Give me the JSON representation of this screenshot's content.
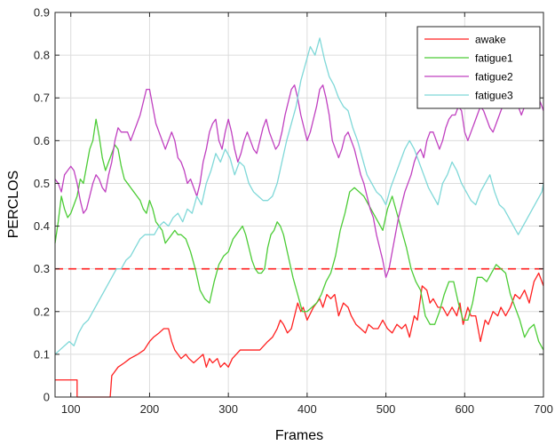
{
  "chart_data": {
    "type": "line",
    "xlabel": "Frames",
    "ylabel": "PERCLOS",
    "xlim": [
      80,
      700
    ],
    "ylim": [
      0,
      0.9
    ],
    "x_ticks": [
      100,
      200,
      300,
      400,
      500,
      600,
      700
    ],
    "y_ticks": [
      0,
      0.1,
      0.2,
      0.3,
      0.4,
      0.5,
      0.6,
      0.7,
      0.8,
      0.9
    ],
    "x_tick_labels": [
      "100",
      "200",
      "300",
      "400",
      "500",
      "600",
      "700"
    ],
    "y_tick_labels": [
      "0",
      "0.1",
      "0.2",
      "0.3",
      "0.4",
      "0.5",
      "0.6",
      "0.7",
      "0.8",
      "0.9"
    ],
    "grid": true,
    "legend_position": "top-right",
    "threshold": {
      "y": 0.3,
      "color": "#ff2020",
      "style": "dashed"
    },
    "series": [
      {
        "name": "awake",
        "color": "#ff2020",
        "x": [
          80,
          108,
          108,
          150,
          152,
          160,
          168,
          175,
          185,
          193,
          200,
          205,
          212,
          218,
          224,
          228,
          232,
          236,
          240,
          246,
          250,
          256,
          262,
          268,
          272,
          276,
          280,
          286,
          290,
          295,
          300,
          305,
          310,
          315,
          320,
          330,
          340,
          350,
          356,
          362,
          366,
          370,
          375,
          380,
          388,
          392,
          395,
          400,
          408,
          416,
          420,
          425,
          430,
          435,
          440,
          446,
          452,
          456,
          462,
          468,
          474,
          478,
          484,
          490,
          496,
          502,
          508,
          514,
          520,
          525,
          530,
          536,
          540,
          546,
          552,
          556,
          560,
          566,
          572,
          578,
          584,
          590,
          594,
          598,
          604,
          608,
          614,
          620,
          626,
          630,
          636,
          642,
          646,
          652,
          658,
          664,
          670,
          676,
          682,
          688,
          694,
          700
        ],
        "y": [
          0.04,
          0.04,
          0.0,
          0.0,
          0.05,
          0.07,
          0.08,
          0.09,
          0.1,
          0.11,
          0.13,
          0.14,
          0.15,
          0.16,
          0.16,
          0.13,
          0.11,
          0.1,
          0.09,
          0.1,
          0.09,
          0.08,
          0.09,
          0.1,
          0.07,
          0.09,
          0.08,
          0.09,
          0.07,
          0.08,
          0.07,
          0.09,
          0.1,
          0.11,
          0.11,
          0.11,
          0.11,
          0.13,
          0.14,
          0.16,
          0.18,
          0.17,
          0.15,
          0.16,
          0.22,
          0.2,
          0.21,
          0.18,
          0.21,
          0.23,
          0.21,
          0.24,
          0.23,
          0.24,
          0.19,
          0.22,
          0.21,
          0.19,
          0.17,
          0.16,
          0.15,
          0.17,
          0.16,
          0.16,
          0.18,
          0.16,
          0.15,
          0.17,
          0.16,
          0.17,
          0.14,
          0.19,
          0.18,
          0.26,
          0.25,
          0.22,
          0.23,
          0.21,
          0.21,
          0.19,
          0.21,
          0.19,
          0.22,
          0.17,
          0.21,
          0.19,
          0.19,
          0.13,
          0.18,
          0.17,
          0.2,
          0.19,
          0.21,
          0.19,
          0.21,
          0.24,
          0.23,
          0.25,
          0.22,
          0.27,
          0.29,
          0.26
        ]
      },
      {
        "name": "fatigue1",
        "color": "#4ccc36",
        "x": [
          80,
          84,
          88,
          92,
          96,
          100,
          104,
          108,
          112,
          116,
          120,
          124,
          128,
          132,
          136,
          140,
          144,
          148,
          152,
          156,
          160,
          164,
          168,
          172,
          176,
          180,
          184,
          188,
          192,
          196,
          200,
          204,
          208,
          212,
          216,
          220,
          224,
          228,
          232,
          236,
          240,
          246,
          252,
          258,
          264,
          270,
          276,
          282,
          288,
          294,
          300,
          306,
          310,
          314,
          318,
          322,
          326,
          330,
          334,
          338,
          342,
          346,
          350,
          354,
          358,
          362,
          366,
          370,
          376,
          382,
          388,
          394,
          400,
          406,
          412,
          418,
          424,
          430,
          436,
          442,
          448,
          454,
          460,
          466,
          472,
          478,
          484,
          490,
          496,
          502,
          508,
          514,
          520,
          526,
          532,
          538,
          544,
          550,
          556,
          562,
          568,
          574,
          580,
          586,
          592,
          598,
          604,
          610,
          616,
          622,
          628,
          634,
          640,
          646,
          652,
          658,
          664,
          670,
          676,
          682,
          688,
          694,
          700
        ],
        "y": [
          0.36,
          0.41,
          0.47,
          0.44,
          0.42,
          0.43,
          0.45,
          0.47,
          0.51,
          0.5,
          0.54,
          0.58,
          0.6,
          0.65,
          0.61,
          0.56,
          0.53,
          0.55,
          0.57,
          0.59,
          0.58,
          0.54,
          0.51,
          0.5,
          0.49,
          0.48,
          0.47,
          0.46,
          0.44,
          0.43,
          0.46,
          0.44,
          0.41,
          0.4,
          0.39,
          0.36,
          0.37,
          0.38,
          0.39,
          0.38,
          0.38,
          0.37,
          0.34,
          0.3,
          0.25,
          0.23,
          0.22,
          0.27,
          0.31,
          0.33,
          0.34,
          0.37,
          0.38,
          0.39,
          0.4,
          0.38,
          0.35,
          0.32,
          0.3,
          0.29,
          0.29,
          0.3,
          0.35,
          0.38,
          0.39,
          0.41,
          0.4,
          0.38,
          0.33,
          0.28,
          0.24,
          0.2,
          0.2,
          0.21,
          0.22,
          0.24,
          0.27,
          0.29,
          0.33,
          0.39,
          0.43,
          0.48,
          0.49,
          0.48,
          0.47,
          0.45,
          0.43,
          0.41,
          0.39,
          0.44,
          0.47,
          0.43,
          0.39,
          0.35,
          0.3,
          0.27,
          0.25,
          0.19,
          0.17,
          0.17,
          0.2,
          0.24,
          0.27,
          0.27,
          0.22,
          0.18,
          0.18,
          0.22,
          0.28,
          0.28,
          0.27,
          0.29,
          0.31,
          0.3,
          0.29,
          0.24,
          0.21,
          0.18,
          0.14,
          0.16,
          0.17,
          0.13,
          0.11
        ]
      },
      {
        "name": "fatigue2",
        "color": "#c040c0",
        "x": [
          80,
          84,
          88,
          92,
          96,
          100,
          104,
          108,
          112,
          116,
          120,
          124,
          128,
          132,
          136,
          140,
          144,
          148,
          152,
          156,
          160,
          164,
          168,
          172,
          176,
          180,
          184,
          188,
          192,
          196,
          200,
          204,
          208,
          212,
          216,
          220,
          224,
          228,
          232,
          236,
          240,
          244,
          248,
          252,
          256,
          260,
          264,
          268,
          272,
          276,
          280,
          284,
          288,
          292,
          296,
          300,
          304,
          308,
          312,
          316,
          320,
          324,
          328,
          332,
          336,
          340,
          344,
          348,
          352,
          356,
          360,
          364,
          368,
          372,
          376,
          380,
          384,
          388,
          392,
          396,
          400,
          404,
          408,
          412,
          416,
          420,
          424,
          428,
          432,
          436,
          440,
          444,
          448,
          452,
          456,
          460,
          464,
          468,
          472,
          476,
          480,
          484,
          488,
          492,
          496,
          500,
          504,
          508,
          512,
          516,
          520,
          524,
          528,
          532,
          536,
          540,
          544,
          548,
          552,
          556,
          560,
          564,
          568,
          572,
          576,
          580,
          584,
          588,
          592,
          596,
          600,
          604,
          608,
          612,
          616,
          620,
          624,
          628,
          632,
          636,
          640,
          644,
          648,
          652,
          656,
          660,
          664,
          668,
          672,
          676,
          680,
          684,
          688,
          692,
          696,
          700
        ],
        "y": [
          0.51,
          0.5,
          0.48,
          0.52,
          0.53,
          0.54,
          0.53,
          0.5,
          0.46,
          0.43,
          0.44,
          0.47,
          0.5,
          0.52,
          0.51,
          0.49,
          0.48,
          0.52,
          0.55,
          0.6,
          0.63,
          0.62,
          0.62,
          0.62,
          0.6,
          0.62,
          0.64,
          0.66,
          0.69,
          0.72,
          0.72,
          0.68,
          0.64,
          0.62,
          0.6,
          0.58,
          0.6,
          0.62,
          0.6,
          0.56,
          0.55,
          0.53,
          0.5,
          0.51,
          0.49,
          0.47,
          0.5,
          0.55,
          0.58,
          0.62,
          0.64,
          0.65,
          0.6,
          0.58,
          0.62,
          0.65,
          0.62,
          0.58,
          0.55,
          0.57,
          0.6,
          0.62,
          0.6,
          0.58,
          0.57,
          0.6,
          0.63,
          0.65,
          0.62,
          0.6,
          0.58,
          0.59,
          0.62,
          0.66,
          0.69,
          0.72,
          0.73,
          0.7,
          0.66,
          0.63,
          0.6,
          0.62,
          0.65,
          0.68,
          0.72,
          0.73,
          0.7,
          0.66,
          0.6,
          0.58,
          0.56,
          0.58,
          0.61,
          0.62,
          0.6,
          0.58,
          0.55,
          0.52,
          0.5,
          0.47,
          0.44,
          0.42,
          0.38,
          0.35,
          0.32,
          0.28,
          0.3,
          0.34,
          0.38,
          0.42,
          0.45,
          0.48,
          0.5,
          0.52,
          0.55,
          0.57,
          0.58,
          0.56,
          0.6,
          0.62,
          0.62,
          0.6,
          0.58,
          0.6,
          0.63,
          0.65,
          0.66,
          0.66,
          0.68,
          0.67,
          0.62,
          0.6,
          0.62,
          0.64,
          0.66,
          0.68,
          0.67,
          0.65,
          0.63,
          0.62,
          0.64,
          0.66,
          0.68,
          0.7,
          0.71,
          0.71,
          0.7,
          0.68,
          0.66,
          0.68,
          0.7,
          0.72,
          0.71,
          0.7,
          0.69,
          0.67
        ]
      },
      {
        "name": "fatigue3",
        "color": "#7fd8d8",
        "x": [
          80,
          86,
          92,
          98,
          104,
          110,
          116,
          122,
          128,
          134,
          140,
          146,
          152,
          158,
          164,
          170,
          176,
          182,
          188,
          194,
          200,
          206,
          212,
          218,
          224,
          230,
          236,
          242,
          248,
          254,
          260,
          266,
          272,
          278,
          284,
          290,
          296,
          302,
          308,
          314,
          320,
          326,
          332,
          338,
          344,
          350,
          356,
          362,
          368,
          374,
          380,
          386,
          392,
          398,
          404,
          410,
          416,
          422,
          428,
          434,
          440,
          446,
          452,
          458,
          464,
          470,
          476,
          482,
          488,
          494,
          500,
          506,
          512,
          518,
          524,
          530,
          536,
          542,
          548,
          554,
          560,
          566,
          572,
          578,
          584,
          590,
          596,
          602,
          608,
          614,
          620,
          626,
          632,
          638,
          644,
          650,
          656,
          662,
          668,
          674,
          680,
          686,
          692,
          698,
          700
        ],
        "y": [
          0.1,
          0.11,
          0.12,
          0.13,
          0.12,
          0.15,
          0.17,
          0.18,
          0.2,
          0.22,
          0.24,
          0.26,
          0.28,
          0.3,
          0.3,
          0.32,
          0.33,
          0.35,
          0.37,
          0.38,
          0.38,
          0.38,
          0.4,
          0.41,
          0.4,
          0.42,
          0.43,
          0.41,
          0.44,
          0.43,
          0.47,
          0.45,
          0.5,
          0.53,
          0.57,
          0.55,
          0.58,
          0.56,
          0.52,
          0.55,
          0.54,
          0.5,
          0.48,
          0.47,
          0.46,
          0.46,
          0.47,
          0.5,
          0.55,
          0.6,
          0.64,
          0.68,
          0.74,
          0.78,
          0.82,
          0.8,
          0.84,
          0.79,
          0.75,
          0.73,
          0.7,
          0.68,
          0.67,
          0.63,
          0.6,
          0.56,
          0.52,
          0.5,
          0.48,
          0.47,
          0.45,
          0.49,
          0.52,
          0.55,
          0.58,
          0.6,
          0.58,
          0.55,
          0.52,
          0.49,
          0.47,
          0.45,
          0.5,
          0.52,
          0.55,
          0.53,
          0.5,
          0.48,
          0.46,
          0.45,
          0.48,
          0.5,
          0.52,
          0.48,
          0.45,
          0.44,
          0.42,
          0.4,
          0.38,
          0.4,
          0.42,
          0.44,
          0.46,
          0.48,
          0.5
        ]
      }
    ]
  }
}
